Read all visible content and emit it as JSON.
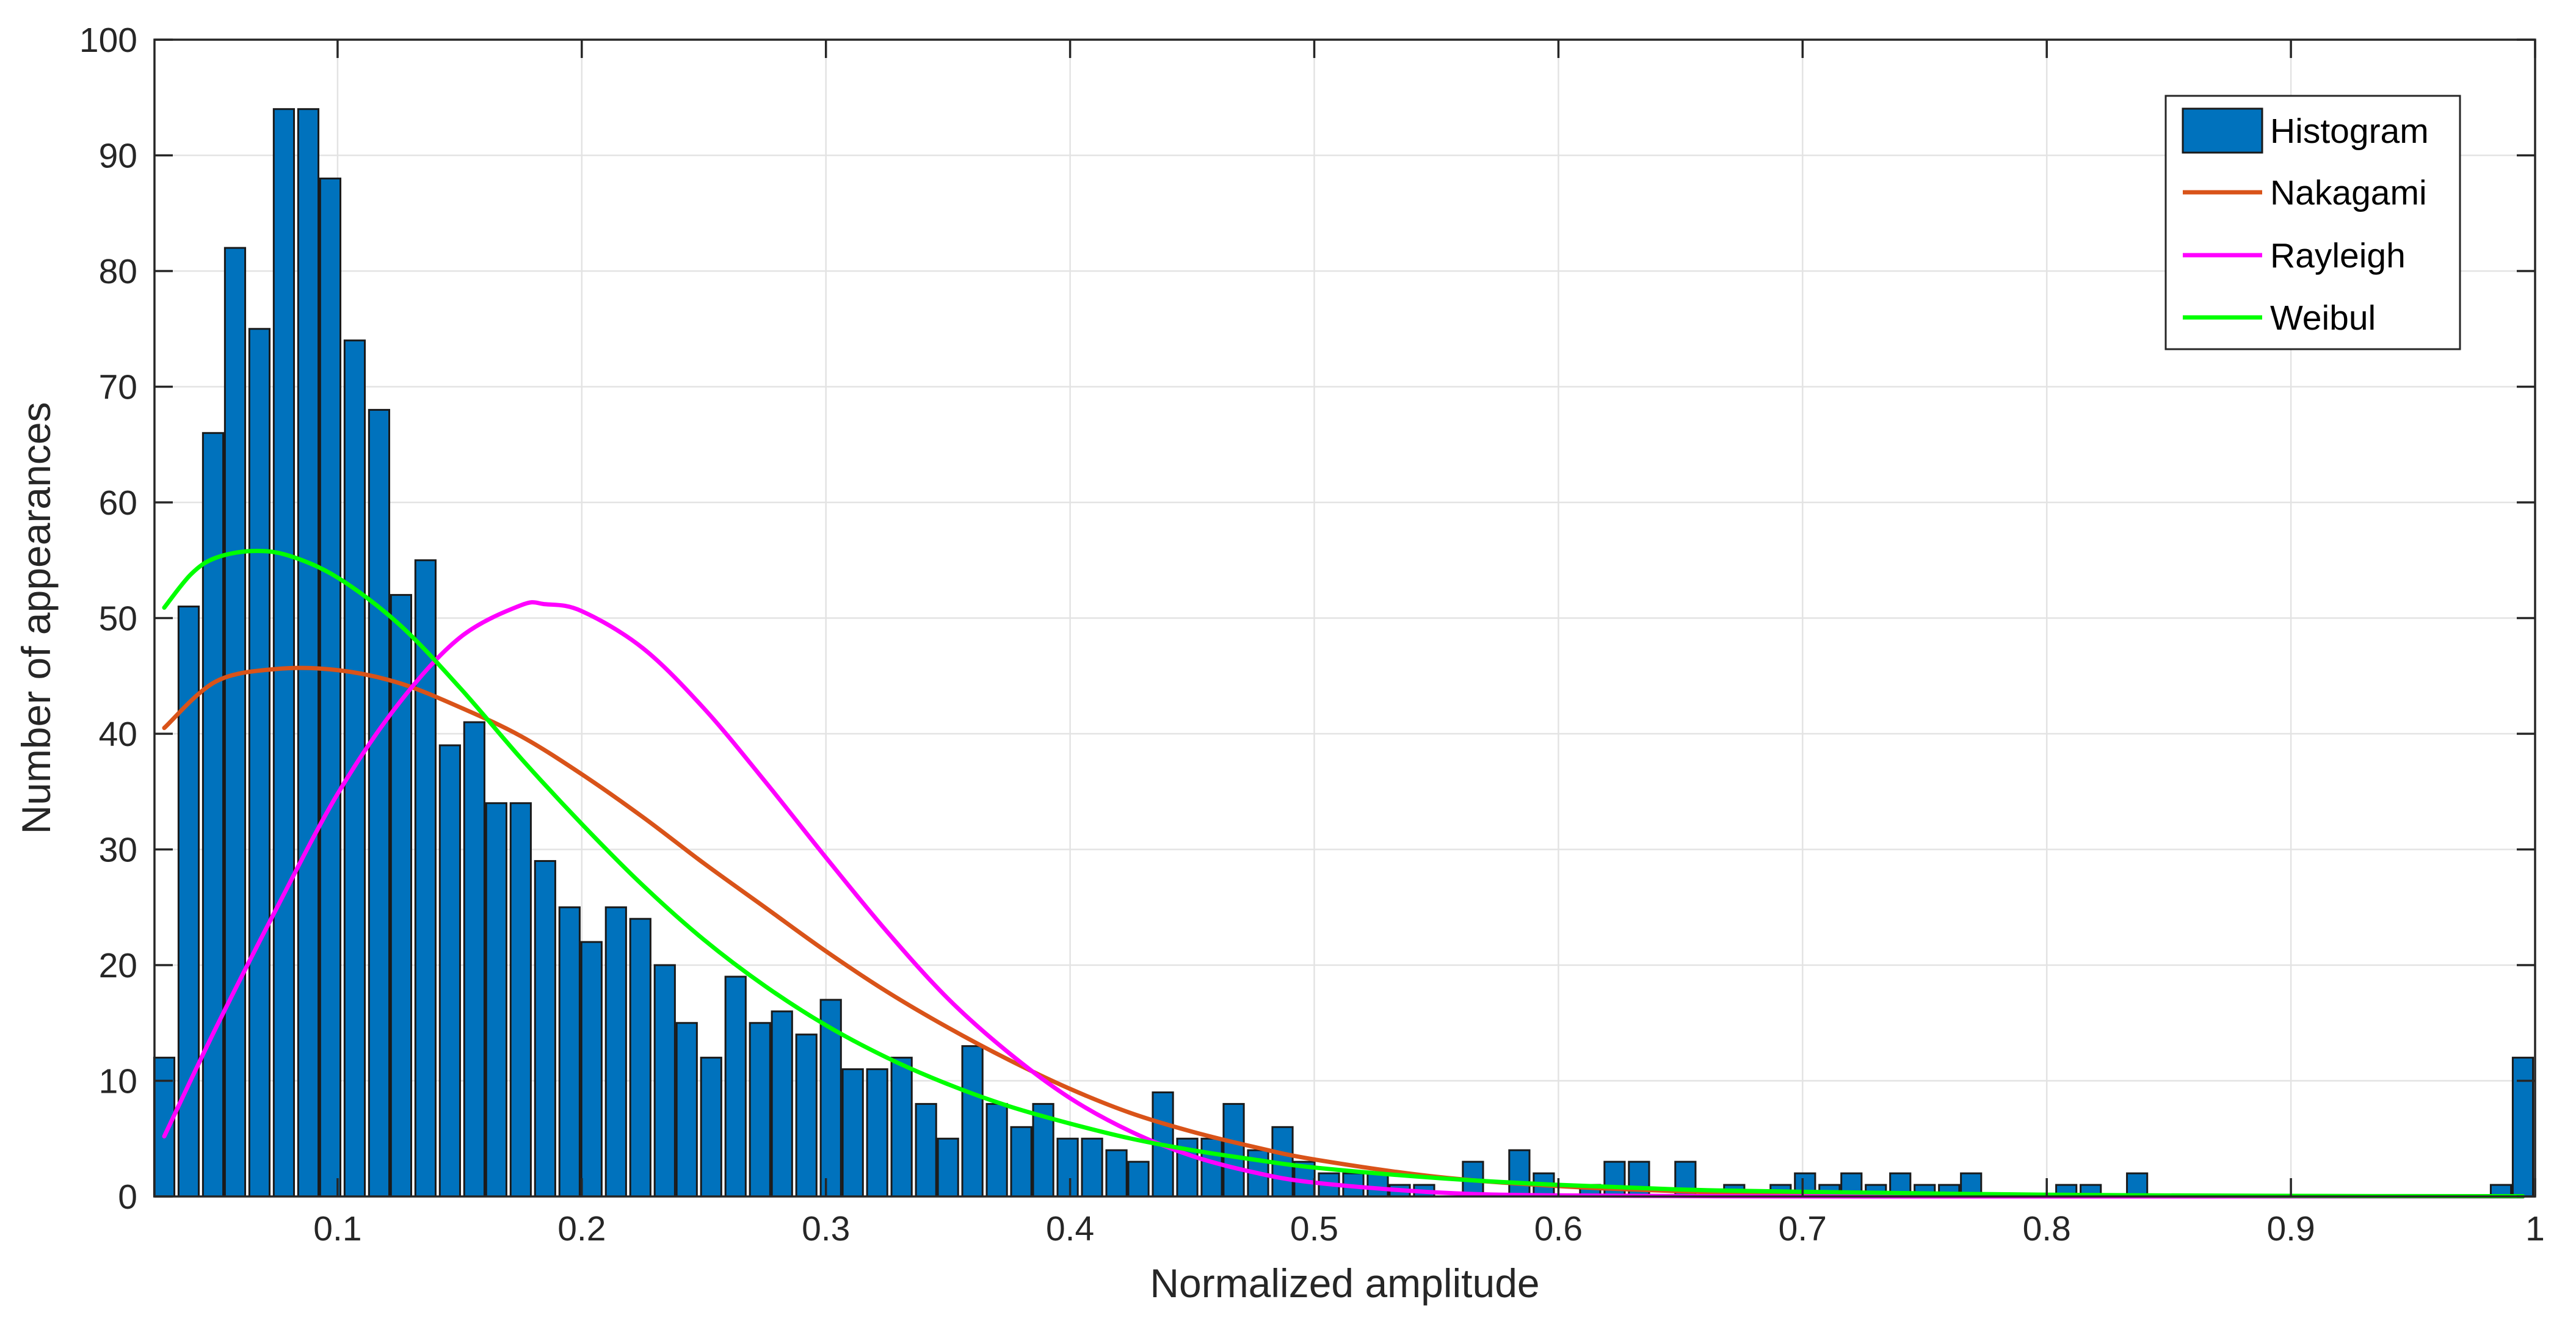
{
  "chart_data": {
    "type": "bar",
    "title": "",
    "xlabel": "Normalized amplitude",
    "ylabel": "Number of appearances",
    "xlim": [
      0.025,
      1.0
    ],
    "ylim": [
      0,
      100
    ],
    "x_ticks": [
      0.1,
      0.2,
      0.3,
      0.4,
      0.5,
      0.6,
      0.7,
      0.8,
      0.9,
      1
    ],
    "x_tick_labels": [
      "0.1",
      "0.2",
      "0.3",
      "0.4",
      "0.5",
      "0.6",
      "0.7",
      "0.8",
      "0.9",
      "1"
    ],
    "y_ticks": [
      0,
      10,
      20,
      30,
      40,
      50,
      60,
      70,
      80,
      90,
      100
    ],
    "y_tick_labels": [
      "0",
      "10",
      "20",
      "30",
      "40",
      "50",
      "60",
      "70",
      "80",
      "90",
      "100"
    ],
    "grid": true,
    "legend_position": "top-right",
    "bar_width": 0.0083,
    "histogram": {
      "name": "Histogram",
      "color": "#0072BD",
      "bins": [
        [
          0.029,
          12
        ],
        [
          0.039,
          51
        ],
        [
          0.049,
          66
        ],
        [
          0.058,
          82
        ],
        [
          0.068,
          75
        ],
        [
          0.078,
          94
        ],
        [
          0.088,
          94
        ],
        [
          0.097,
          88
        ],
        [
          0.107,
          74
        ],
        [
          0.117,
          68
        ],
        [
          0.126,
          52
        ],
        [
          0.136,
          55
        ],
        [
          0.146,
          39
        ],
        [
          0.156,
          41
        ],
        [
          0.165,
          34
        ],
        [
          0.175,
          34
        ],
        [
          0.185,
          29
        ],
        [
          0.195,
          25
        ],
        [
          0.204,
          22
        ],
        [
          0.214,
          25
        ],
        [
          0.224,
          24
        ],
        [
          0.234,
          20
        ],
        [
          0.243,
          15
        ],
        [
          0.253,
          12
        ],
        [
          0.263,
          19
        ],
        [
          0.273,
          15
        ],
        [
          0.282,
          16
        ],
        [
          0.292,
          14
        ],
        [
          0.302,
          17
        ],
        [
          0.311,
          11
        ],
        [
          0.321,
          11
        ],
        [
          0.331,
          12
        ],
        [
          0.341,
          8
        ],
        [
          0.35,
          5
        ],
        [
          0.36,
          13
        ],
        [
          0.37,
          8
        ],
        [
          0.38,
          6
        ],
        [
          0.389,
          8
        ],
        [
          0.399,
          5
        ],
        [
          0.409,
          5
        ],
        [
          0.419,
          4
        ],
        [
          0.428,
          3
        ],
        [
          0.438,
          9
        ],
        [
          0.448,
          5
        ],
        [
          0.458,
          5
        ],
        [
          0.467,
          8
        ],
        [
          0.477,
          4
        ],
        [
          0.487,
          6
        ],
        [
          0.496,
          3
        ],
        [
          0.506,
          2
        ],
        [
          0.516,
          2
        ],
        [
          0.526,
          2
        ],
        [
          0.535,
          1
        ],
        [
          0.545,
          1
        ],
        [
          0.565,
          3
        ],
        [
          0.584,
          4
        ],
        [
          0.594,
          2
        ],
        [
          0.613,
          1
        ],
        [
          0.623,
          3
        ],
        [
          0.633,
          3
        ],
        [
          0.652,
          3
        ],
        [
          0.672,
          1
        ],
        [
          0.691,
          1
        ],
        [
          0.701,
          2
        ],
        [
          0.711,
          1
        ],
        [
          0.72,
          2
        ],
        [
          0.73,
          1
        ],
        [
          0.74,
          2
        ],
        [
          0.75,
          1
        ],
        [
          0.76,
          1
        ],
        [
          0.769,
          2
        ],
        [
          0.808,
          1
        ],
        [
          0.818,
          1
        ],
        [
          0.837,
          2
        ],
        [
          0.986,
          1
        ],
        [
          0.995,
          12
        ]
      ]
    },
    "series": [
      {
        "name": "Nakagami",
        "color": "#D95319",
        "x": [
          0.029,
          0.05,
          0.075,
          0.1,
          0.125,
          0.15,
          0.175,
          0.2,
          0.225,
          0.25,
          0.275,
          0.3,
          0.325,
          0.35,
          0.375,
          0.4,
          0.425,
          0.45,
          0.475,
          0.5,
          0.55,
          0.6,
          0.65,
          0.7,
          0.8,
          0.9,
          0.995
        ],
        "y": [
          40.5,
          44.5,
          45.6,
          45.5,
          44.4,
          42.3,
          39.8,
          36.5,
          32.8,
          28.8,
          25.0,
          21.2,
          17.7,
          14.6,
          11.8,
          9.3,
          7.2,
          5.6,
          4.3,
          3.2,
          1.7,
          0.9,
          0.45,
          0.2,
          0.05,
          0.01,
          0
        ]
      },
      {
        "name": "Rayleigh",
        "color": "#FF00FF",
        "x": [
          0.029,
          0.05,
          0.075,
          0.1,
          0.125,
          0.15,
          0.175,
          0.185,
          0.2,
          0.225,
          0.25,
          0.275,
          0.3,
          0.325,
          0.35,
          0.375,
          0.4,
          0.425,
          0.45,
          0.475,
          0.5,
          0.55,
          0.6,
          0.7,
          0.8,
          0.995
        ],
        "y": [
          5.2,
          14.5,
          24.9,
          34.8,
          42.6,
          48.3,
          51.1,
          51.2,
          50.6,
          47.4,
          42.2,
          35.9,
          29.3,
          22.9,
          17.1,
          12.4,
          8.5,
          5.6,
          3.5,
          2.1,
          1.2,
          0.35,
          0.09,
          0.005,
          0,
          0
        ]
      },
      {
        "name": "Weibul",
        "color": "#00FF00",
        "x": [
          0.029,
          0.04,
          0.05,
          0.065,
          0.08,
          0.1,
          0.125,
          0.15,
          0.175,
          0.2,
          0.225,
          0.25,
          0.275,
          0.3,
          0.325,
          0.35,
          0.375,
          0.4,
          0.425,
          0.45,
          0.475,
          0.5,
          0.55,
          0.6,
          0.65,
          0.7,
          0.8,
          0.9,
          0.995
        ],
        "y": [
          50.9,
          53.8,
          55.2,
          55.8,
          55.4,
          53.5,
          49.5,
          44.0,
          37.9,
          32.2,
          26.9,
          22.2,
          18.2,
          14.8,
          12.0,
          9.7,
          7.8,
          6.3,
          5.0,
          4.0,
          3.2,
          2.5,
          1.6,
          1.0,
          0.6,
          0.4,
          0.15,
          0.05,
          0.02
        ]
      }
    ]
  }
}
